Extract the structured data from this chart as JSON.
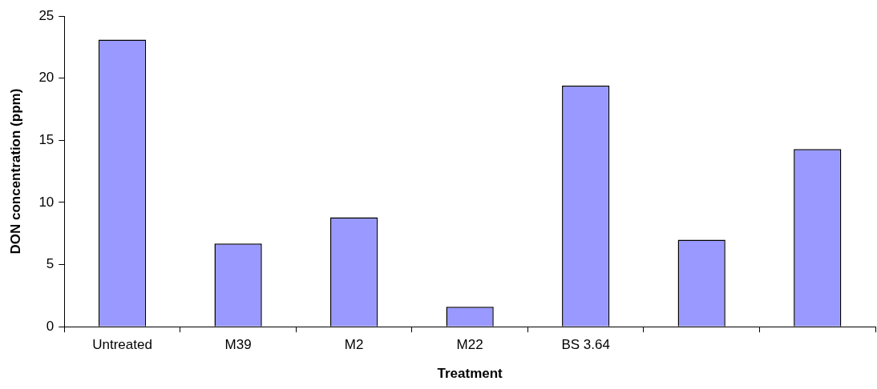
{
  "chart_data": {
    "type": "bar",
    "xlabel": "Treatment",
    "ylabel": "DON concentration (ppm)",
    "categories": [
      "Untreated",
      "M39",
      "M2",
      "M22",
      "BS 3.64",
      null,
      null
    ],
    "values": [
      23.1,
      6.7,
      8.8,
      1.6,
      19.4,
      7.0,
      14.3
    ],
    "color": "#9999ff",
    "ylim": [
      0,
      25
    ],
    "yticks": [
      0,
      5,
      10,
      15,
      20,
      25
    ],
    "grid": false,
    "legend": false
  }
}
